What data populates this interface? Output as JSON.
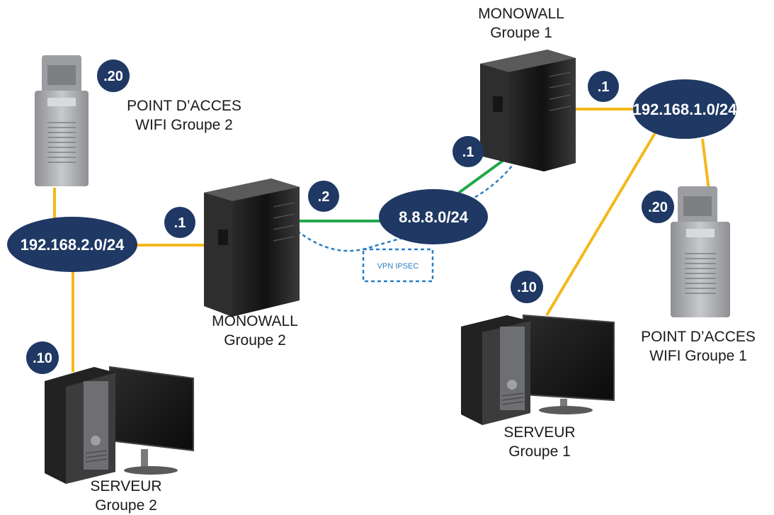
{
  "networks": {
    "lan1": "192.168.1.0/24",
    "lan2": "192.168.2.0/24",
    "wan": "8.8.8.0/24"
  },
  "badges": {
    "ap2": ".20",
    "fw2_lan": ".1",
    "fw2_wan": ".2",
    "srv2": ".10",
    "fw1_wan": ".1",
    "fw1_lan": ".1",
    "ap1": ".20",
    "srv1": ".10"
  },
  "devices": {
    "ap2": {
      "line1": "POINT D’ACCES",
      "line2": "WIFI Groupe 2"
    },
    "fw2": {
      "line1": "MONOWALL",
      "line2": "Groupe 2"
    },
    "srv2": {
      "line1": "SERVEUR",
      "line2": "Groupe 2"
    },
    "fw1": {
      "line1": "MONOWALL",
      "line2": "Groupe 1"
    },
    "ap1": {
      "line1": "POINT D’ACCES",
      "line2": "WIFI Groupe 1"
    },
    "srv1": {
      "line1": "SERVEUR",
      "line2": "Groupe 1"
    }
  },
  "vpn_label": "VPN IPSEC",
  "colors": {
    "network": "#1f3864",
    "lan_link": "#f5b71b",
    "wan_link": "#22a84a",
    "vpn": "#2a7fc2"
  }
}
